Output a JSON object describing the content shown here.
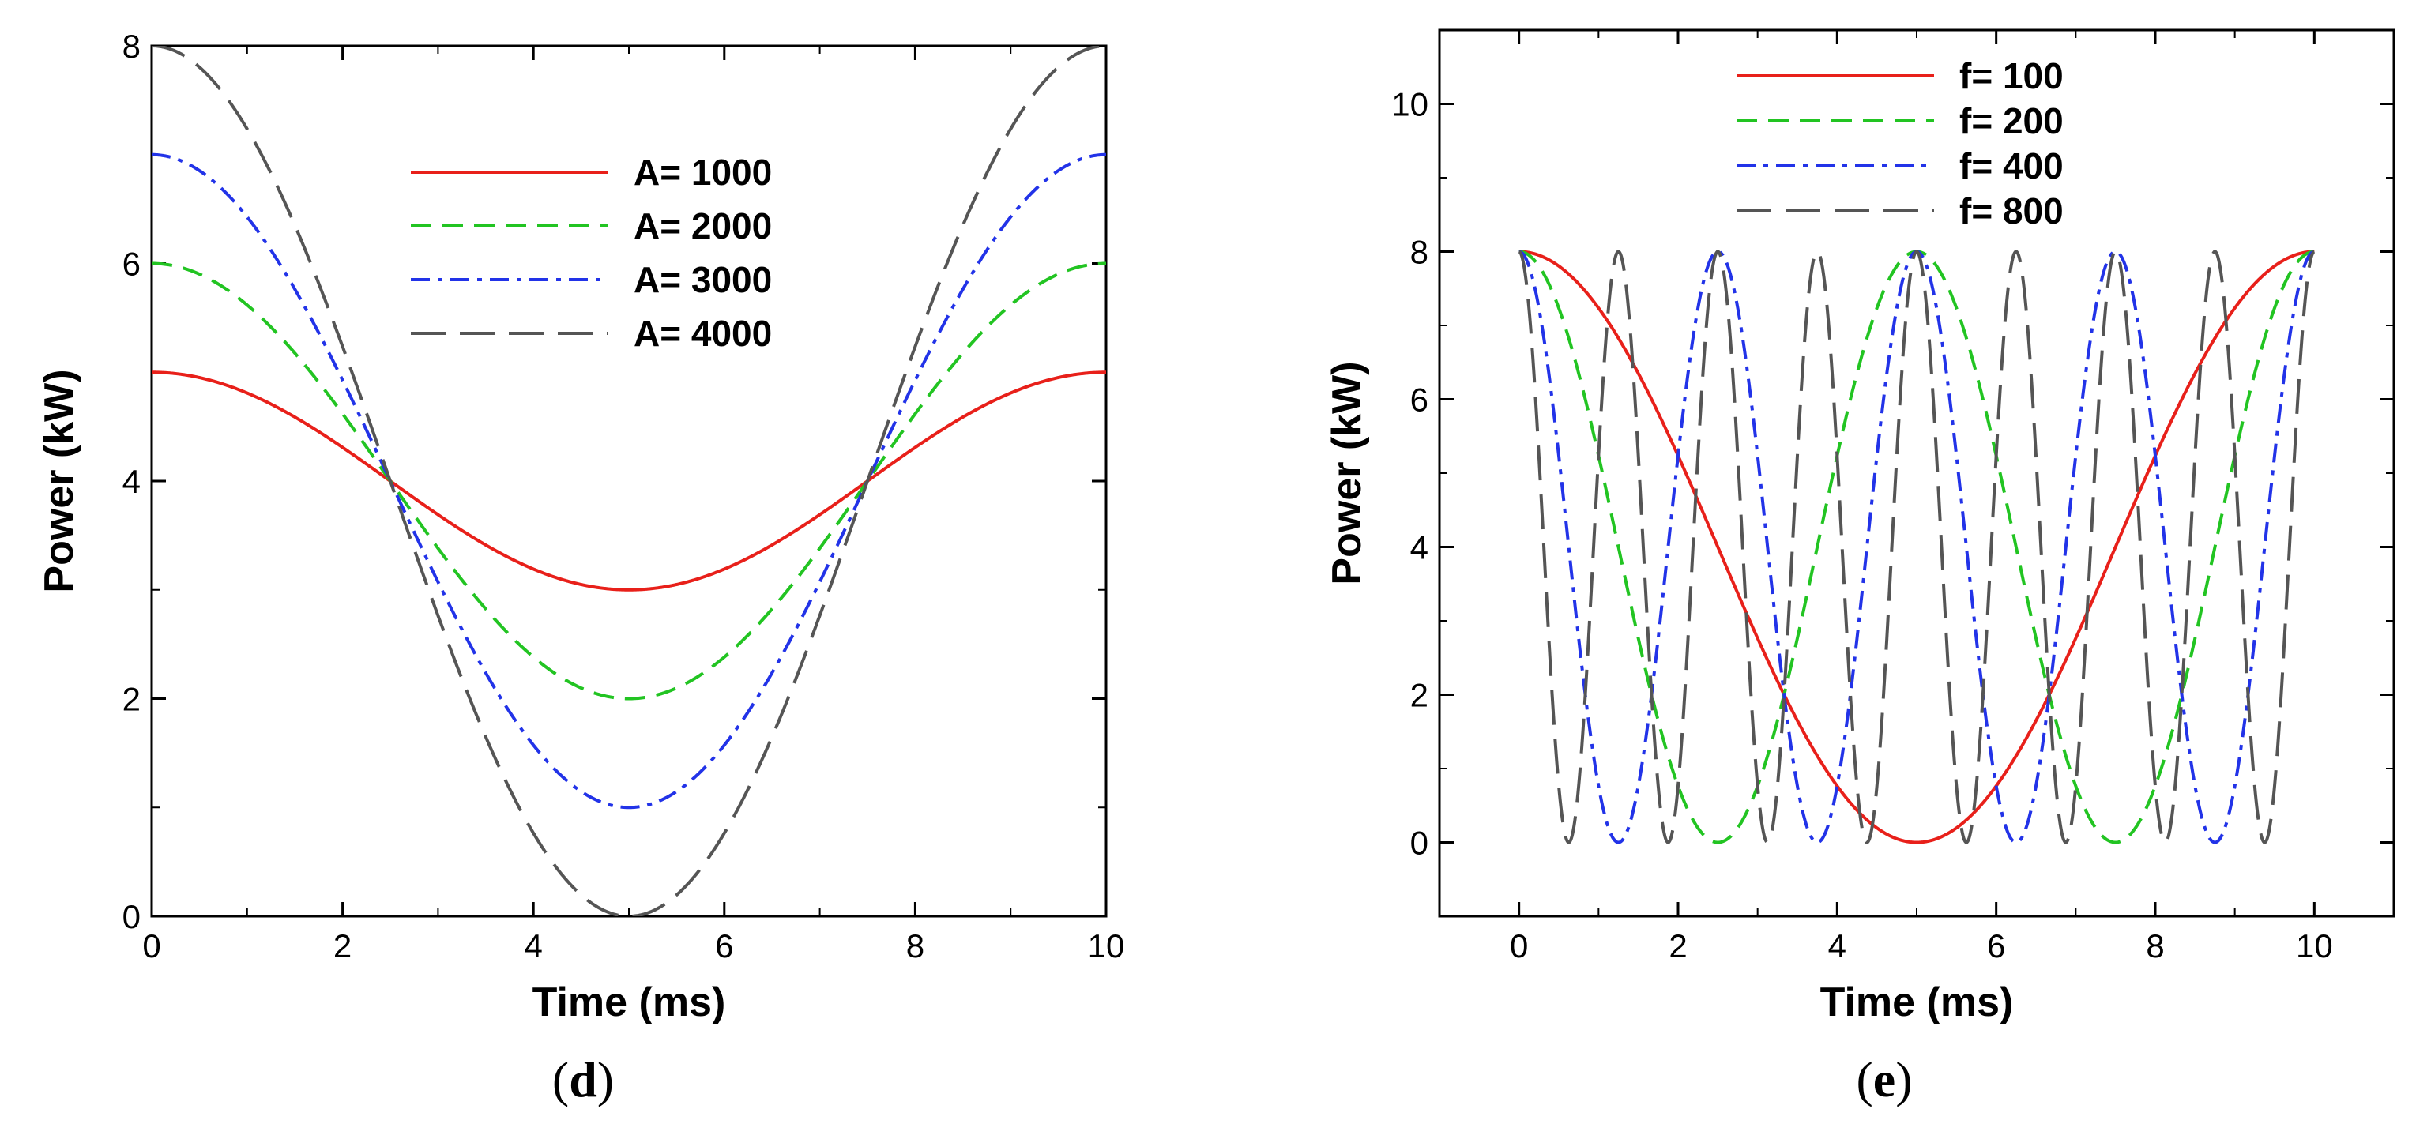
{
  "chart_data": [
    {
      "panel": "(d)",
      "panel_letter": "d",
      "type": "line",
      "xlabel": "Time (ms)",
      "ylabel": "Power (kW)",
      "xlim": [
        0,
        10
      ],
      "ylim": [
        0,
        8
      ],
      "xticks": [
        0,
        2,
        4,
        6,
        8,
        10
      ],
      "yticks": [
        0,
        2,
        4,
        6,
        8
      ],
      "x_tick_labels": [
        "0",
        "2",
        "4",
        "6",
        "8",
        "10"
      ],
      "y_tick_labels": [
        "0",
        "2",
        "4",
        "6",
        "8"
      ],
      "legend_position": "top-right (inside)",
      "series": [
        {
          "name": "A= 1000",
          "color": "#e8201a",
          "style": "solid",
          "formula": "4 + 1 * cos(2*pi*t/10)",
          "x": [
            0,
            2.5,
            5,
            7.5,
            10
          ],
          "values": [
            5,
            4,
            3,
            4,
            5
          ]
        },
        {
          "name": "A= 2000",
          "color": "#22c422",
          "style": "dashed",
          "formula": "4 + 2 * cos(2*pi*t/10)",
          "x": [
            0,
            2.5,
            5,
            7.5,
            10
          ],
          "values": [
            6,
            4,
            2,
            4,
            6
          ]
        },
        {
          "name": "A= 3000",
          "color": "#2233e8",
          "style": "dashdot",
          "formula": "4 + 3 * cos(2*pi*t/10)",
          "x": [
            0,
            2.5,
            5,
            7.5,
            10
          ],
          "values": [
            7,
            4,
            1,
            4,
            7
          ]
        },
        {
          "name": "A= 4000",
          "color": "#555555",
          "style": "longdash",
          "formula": "4 + 4 * cos(2*pi*t/10)",
          "x": [
            0,
            2.5,
            5,
            7.5,
            10
          ],
          "values": [
            8,
            4,
            0,
            4,
            8
          ]
        }
      ]
    },
    {
      "panel": "(e)",
      "panel_letter": "e",
      "type": "line",
      "xlabel": "Time (ms)",
      "ylabel": "Power (kW)",
      "xlim": [
        -1,
        11
      ],
      "ylim": [
        -1,
        11
      ],
      "xticks": [
        0,
        2,
        4,
        6,
        8,
        10
      ],
      "yticks": [
        0,
        2,
        4,
        6,
        8,
        10
      ],
      "x_tick_labels": [
        "0",
        "2",
        "4",
        "6",
        "8",
        "10"
      ],
      "y_tick_labels": [
        "0",
        "2",
        "4",
        "6",
        "8",
        "10"
      ],
      "legend_position": "top-center (inside)",
      "series": [
        {
          "name": "f= 100",
          "color": "#e8201a",
          "style": "solid",
          "formula": "4 + 4 * cos(2*pi*f*t/1000), f=100",
          "x": [
            0,
            2.5,
            5,
            7.5,
            10
          ],
          "values": [
            8,
            4,
            0,
            4,
            8
          ]
        },
        {
          "name": "f= 200",
          "color": "#22c422",
          "style": "dashed",
          "formula": "4 + 4 * cos(2*pi*f*t/1000), f=200",
          "x": [
            0,
            1.25,
            2.5,
            3.75,
            5
          ],
          "values": [
            8,
            4,
            0,
            4,
            8
          ]
        },
        {
          "name": "f= 400",
          "color": "#2233e8",
          "style": "dashdot",
          "formula": "4 + 4 * cos(2*pi*f*t/1000), f=400",
          "x": [
            0,
            0.625,
            1.25,
            1.875,
            2.5
          ],
          "values": [
            8,
            4,
            0,
            4,
            8
          ]
        },
        {
          "name": "f= 800",
          "color": "#555555",
          "style": "longdash",
          "formula": "4 + 4 * cos(2*pi*f*t/1000), f=800",
          "x": [
            0,
            0.3125,
            0.625,
            0.9375,
            1.25
          ],
          "values": [
            8,
            4,
            0,
            4,
            8
          ]
        }
      ]
    }
  ]
}
